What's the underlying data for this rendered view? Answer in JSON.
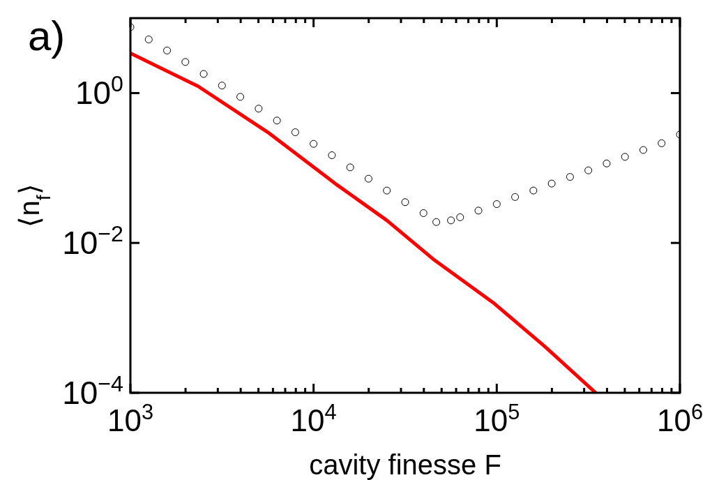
{
  "chart_data": {
    "type": "line",
    "xlabel": "cavity finesse F",
    "ylabel": "⟨n$_{f}$⟩",
    "annotations": [
      "a)"
    ],
    "log": "xy",
    "grid": false,
    "xlim": [
      1000,
      1000000
    ],
    "ylim": [
      0.0001,
      10
    ],
    "xticks": [
      {
        "value": 1000,
        "label": "10$^{3}$"
      },
      {
        "value": 2000,
        "label": null
      },
      {
        "value": 3000,
        "label": null
      },
      {
        "value": 4000,
        "label": null
      },
      {
        "value": 5000,
        "label": null
      },
      {
        "value": 6000,
        "label": null
      },
      {
        "value": 7000,
        "label": null
      },
      {
        "value": 8000,
        "label": null
      },
      {
        "value": 9000,
        "label": null
      },
      {
        "value": 10000,
        "label": "10$^{4}$"
      },
      {
        "value": 20000,
        "label": null
      },
      {
        "value": 30000,
        "label": null
      },
      {
        "value": 40000,
        "label": null
      },
      {
        "value": 50000,
        "label": null
      },
      {
        "value": 60000,
        "label": null
      },
      {
        "value": 70000,
        "label": null
      },
      {
        "value": 80000,
        "label": null
      },
      {
        "value": 90000,
        "label": null
      },
      {
        "value": 100000,
        "label": "10$^{5}$"
      },
      {
        "value": 200000,
        "label": null
      },
      {
        "value": 300000,
        "label": null
      },
      {
        "value": 400000,
        "label": null
      },
      {
        "value": 500000,
        "label": null
      },
      {
        "value": 600000,
        "label": null
      },
      {
        "value": 700000,
        "label": null
      },
      {
        "value": 800000,
        "label": null
      },
      {
        "value": 900000,
        "label": null
      },
      {
        "value": 1000000,
        "label": "10$^{6}$"
      }
    ],
    "yticks": [
      {
        "value": 0.0001,
        "label": "10$^{−4}$"
      },
      {
        "value": 0.01,
        "label": "10$^{−2}$"
      },
      {
        "value": 1,
        "label": "10$^{0}$"
      }
    ],
    "series": [
      {
        "type": "scatter",
        "marker": "circle",
        "color": "#000000",
        "x": [
          1000,
          1259,
          1585,
          1995,
          2512,
          3162,
          3981,
          5012,
          6310,
          7943,
          10000,
          12589,
          15849,
          19953,
          25119,
          31623,
          39811,
          46774,
          56234,
          63096,
          79433,
          100000,
          125893,
          158489,
          199526,
          251189,
          316228,
          398107,
          501187,
          630957,
          794328,
          1000000
        ],
        "values": [
          7.6,
          5.2,
          3.7,
          2.6,
          1.8,
          1.26,
          0.89,
          0.62,
          0.43,
          0.3,
          0.21,
          0.148,
          0.102,
          0.072,
          0.05,
          0.035,
          0.025,
          0.019,
          0.02,
          0.022,
          0.027,
          0.033,
          0.041,
          0.05,
          0.062,
          0.076,
          0.093,
          0.115,
          0.141,
          0.174,
          0.214,
          0.28
        ]
      },
      {
        "marker": "none",
        "color": "#ff0000",
        "x": [
          1000,
          2344,
          5623,
          13490,
          25119,
          45709,
          95500,
          181970,
          346737
        ],
        "values": [
          3.4,
          1.23,
          0.3,
          0.059,
          0.02,
          0.0059,
          0.0016,
          0.00042,
          0.0001
        ]
      }
    ]
  }
}
